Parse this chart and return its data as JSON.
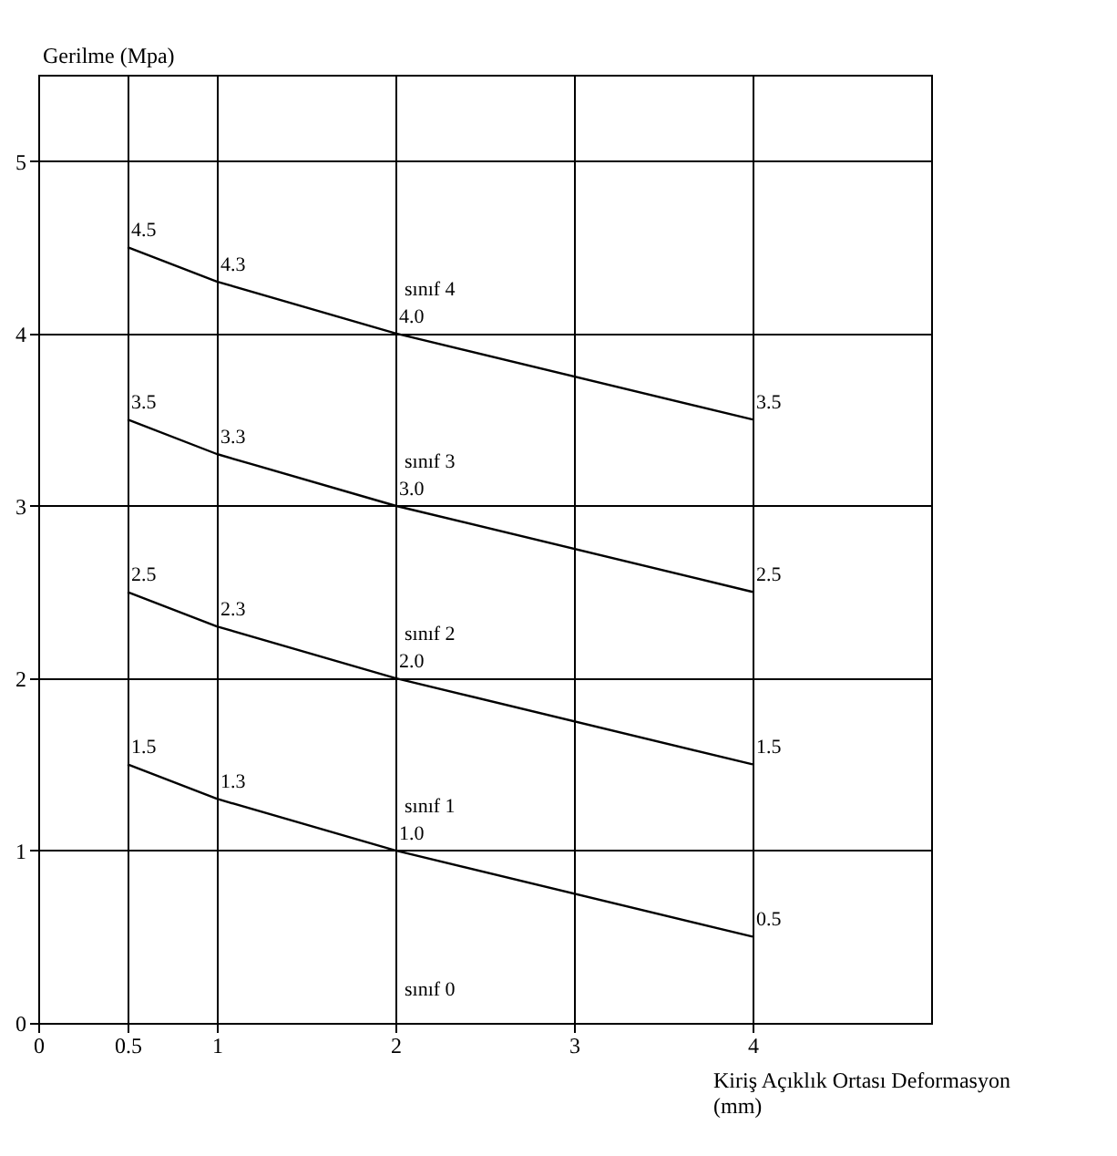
{
  "chart_data": {
    "type": "line",
    "xlabel": "Kiriş Açıklık Ortası Deformasyon (mm)",
    "ylabel": "Gerilme (Mpa)",
    "x": [
      0.5,
      1,
      2,
      4
    ],
    "series": [
      {
        "color": "#000000",
        "values": [
          4.5,
          4.3,
          4.0,
          3.5
        ],
        "value_labels": [
          "4.5",
          "4.3",
          "4.0",
          "3.5"
        ]
      },
      {
        "color": "#000000",
        "values": [
          3.5,
          3.3,
          3.0,
          2.5
        ],
        "value_labels": [
          "3.5",
          "3.3",
          "3.0",
          "2.5"
        ]
      },
      {
        "color": "#000000",
        "values": [
          2.5,
          2.3,
          2.0,
          1.5
        ],
        "value_labels": [
          "2.5",
          "2.3",
          "2.0",
          "1.5"
        ]
      },
      {
        "color": "#000000",
        "values": [
          1.5,
          1.3,
          1.0,
          0.5
        ],
        "value_labels": [
          "1.5",
          "1.3",
          "1.0",
          "0.5"
        ]
      }
    ],
    "annotations": [
      "sınıf 4",
      "sınıf 3",
      "sınıf 2",
      "sınıf 1",
      "sınıf 0"
    ],
    "xlim": [
      0,
      5
    ],
    "xticks": [
      0,
      0.5,
      1,
      2,
      3,
      4
    ],
    "ylim": [
      0,
      5.5
    ],
    "yticks": [
      0,
      1,
      2,
      3,
      4,
      5
    ],
    "grid": true,
    "marker": "none",
    "line_style": "solid",
    "legend": false
  }
}
